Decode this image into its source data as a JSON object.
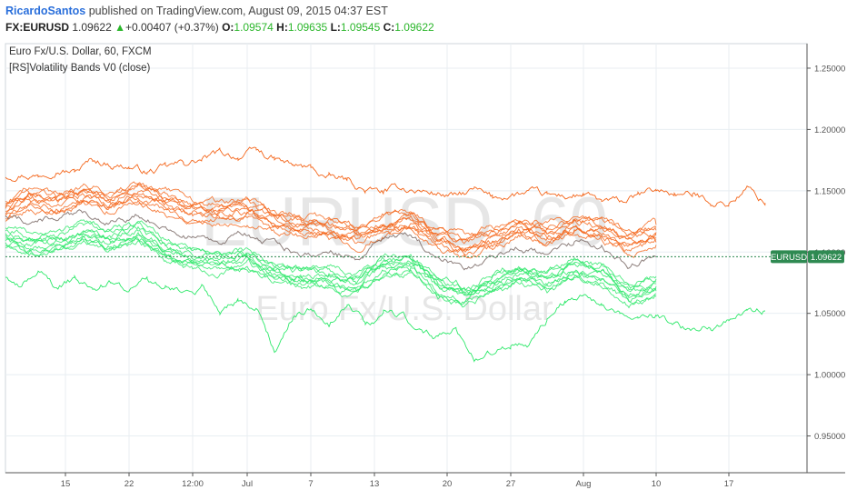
{
  "header": {
    "author": "RicardoSantos",
    "published_text": "published on TradingView.com, August 09, 2015 04:37 EST",
    "symbol": "FX:EURUSD",
    "price": "1.09622",
    "change": "+0.00407 (+0.37%)",
    "open_label": "O:",
    "open_value": "1.09574",
    "high_label": "H:",
    "high_value": "1.09635",
    "low_label": "L:",
    "low_value": "1.09545",
    "close_label": "C:",
    "close_value": "1.09622"
  },
  "legend": {
    "title": "Euro Fx/U.S. Dollar, 60, FXCM",
    "indicator": "[RS]Volatility Bands V0 (close)"
  },
  "watermark": {
    "symbol": "EURUSD, 60",
    "description": "Euro Fx/U.S. Dollar"
  },
  "price_tag": {
    "symbol": "EURUSD",
    "value": "1.09622"
  },
  "colors": {
    "upper_band": "#f4661b",
    "lower_band": "#2ee86a",
    "price_line": "#7a6a66",
    "price_tag_bg": "#2f8a52",
    "grid": "#e8eef2"
  },
  "chart_data": {
    "type": "line",
    "title": "Euro Fx/U.S. Dollar, 60, FXCM",
    "indicator": "[RS]Volatility Bands V0 (close)",
    "ylim": [
      0.92,
      1.27
    ],
    "y_ticks": [
      "1.25000",
      "1.20000",
      "1.15000",
      "1.10000",
      "1.05000",
      "1.00000",
      "0.95000"
    ],
    "y_tick_values": [
      1.25,
      1.2,
      1.15,
      1.1,
      1.05,
      1.0,
      0.95
    ],
    "x_ticks": [
      "15",
      "22",
      "12:00",
      "Jul",
      "7",
      "13",
      "20",
      "27",
      "Aug",
      "10",
      "17"
    ],
    "x_tick_positions": [
      1,
      8,
      15,
      21,
      28,
      35,
      43,
      50,
      58,
      66,
      74
    ],
    "xlim": [
      -5.6,
      82.6
    ],
    "grid": true,
    "legend_position": "top-left",
    "last_price": 1.09622,
    "series": [
      {
        "role": "upper-outer",
        "x": [
          -5.6,
          -4,
          -2,
          0,
          2,
          4,
          6,
          8,
          10,
          12,
          14,
          16,
          18,
          20,
          22,
          24,
          26,
          28,
          30,
          32,
          34,
          36,
          38,
          40,
          42,
          44,
          46,
          48,
          50,
          52,
          54,
          56,
          58,
          60,
          62,
          64,
          66,
          68,
          70,
          72,
          74,
          76,
          78
        ],
        "y": [
          1.162,
          1.165,
          1.163,
          1.17,
          1.166,
          1.175,
          1.172,
          1.17,
          1.165,
          1.168,
          1.172,
          1.175,
          1.18,
          1.178,
          1.182,
          1.175,
          1.17,
          1.168,
          1.16,
          1.158,
          1.15,
          1.148,
          1.152,
          1.15,
          1.148,
          1.145,
          1.15,
          1.143,
          1.147,
          1.148,
          1.145,
          1.145,
          1.147,
          1.14,
          1.14,
          1.145,
          1.15,
          1.148,
          1.146,
          1.142,
          1.14,
          1.152,
          1.14
        ]
      },
      {
        "role": "upper-band-1",
        "x": [
          -5.6,
          -3,
          0,
          3,
          6,
          9,
          12,
          15,
          18,
          21,
          24,
          27,
          30,
          33,
          36,
          39,
          42,
          45,
          48,
          51,
          54,
          57,
          60,
          63,
          66
        ],
        "y": [
          1.14,
          1.15,
          1.145,
          1.152,
          1.148,
          1.155,
          1.147,
          1.14,
          1.138,
          1.14,
          1.132,
          1.128,
          1.125,
          1.12,
          1.128,
          1.132,
          1.118,
          1.11,
          1.118,
          1.125,
          1.12,
          1.128,
          1.125,
          1.113,
          1.12
        ]
      },
      {
        "role": "upper-band-2",
        "x": [
          -5.6,
          -3,
          0,
          3,
          6,
          9,
          12,
          15,
          18,
          21,
          24,
          27,
          30,
          33,
          36,
          39,
          42,
          45,
          48,
          51,
          54,
          57,
          60,
          63,
          66
        ],
        "y": [
          1.134,
          1.144,
          1.139,
          1.146,
          1.142,
          1.149,
          1.141,
          1.134,
          1.132,
          1.134,
          1.126,
          1.122,
          1.119,
          1.114,
          1.122,
          1.126,
          1.112,
          1.104,
          1.112,
          1.119,
          1.114,
          1.122,
          1.119,
          1.107,
          1.114
        ]
      },
      {
        "role": "upper-band-3",
        "x": [
          -5.6,
          -3,
          0,
          3,
          6,
          9,
          12,
          15,
          18,
          21,
          24,
          27,
          30,
          33,
          36,
          39,
          42,
          45,
          48,
          51,
          54,
          57,
          60,
          63,
          66
        ],
        "y": [
          1.128,
          1.138,
          1.133,
          1.14,
          1.136,
          1.143,
          1.135,
          1.128,
          1.126,
          1.128,
          1.12,
          1.116,
          1.113,
          1.108,
          1.116,
          1.12,
          1.106,
          1.098,
          1.106,
          1.113,
          1.108,
          1.116,
          1.113,
          1.101,
          1.108
        ]
      },
      {
        "role": "price",
        "x": [
          -5.6,
          -3,
          0,
          3,
          6,
          9,
          12,
          15,
          18,
          21,
          24,
          27,
          30,
          33,
          36,
          39,
          42,
          45,
          48,
          51,
          54,
          57,
          60,
          63,
          66
        ],
        "y": [
          1.13,
          1.125,
          1.128,
          1.131,
          1.126,
          1.13,
          1.12,
          1.112,
          1.11,
          1.114,
          1.105,
          1.1,
          1.1,
          1.095,
          1.11,
          1.112,
          1.095,
          1.088,
          1.096,
          1.104,
          1.098,
          1.108,
          1.105,
          1.09,
          1.096
        ]
      },
      {
        "role": "lower-band-1",
        "x": [
          -5.6,
          -3,
          0,
          3,
          6,
          9,
          12,
          15,
          18,
          21,
          24,
          27,
          30,
          33,
          36,
          39,
          42,
          45,
          48,
          51,
          54,
          57,
          60,
          63,
          66
        ],
        "y": [
          1.118,
          1.112,
          1.114,
          1.12,
          1.116,
          1.121,
          1.108,
          1.1,
          1.098,
          1.1,
          1.09,
          1.086,
          1.085,
          1.08,
          1.094,
          1.096,
          1.078,
          1.07,
          1.08,
          1.088,
          1.082,
          1.092,
          1.088,
          1.072,
          1.078
        ]
      },
      {
        "role": "lower-band-2",
        "x": [
          -5.6,
          -3,
          0,
          3,
          6,
          9,
          12,
          15,
          18,
          21,
          24,
          27,
          30,
          33,
          36,
          39,
          42,
          45,
          48,
          51,
          54,
          57,
          60,
          63,
          66
        ],
        "y": [
          1.112,
          1.106,
          1.108,
          1.114,
          1.11,
          1.115,
          1.102,
          1.094,
          1.092,
          1.094,
          1.084,
          1.08,
          1.079,
          1.074,
          1.088,
          1.09,
          1.072,
          1.064,
          1.074,
          1.082,
          1.076,
          1.086,
          1.082,
          1.066,
          1.072
        ]
      },
      {
        "role": "lower-band-3",
        "x": [
          -5.6,
          -3,
          0,
          3,
          6,
          9,
          12,
          15,
          18,
          21,
          24,
          27,
          30,
          33,
          36,
          39,
          42,
          45,
          48,
          51,
          54,
          57,
          60,
          63,
          66
        ],
        "y": [
          1.106,
          1.1,
          1.102,
          1.108,
          1.104,
          1.109,
          1.096,
          1.088,
          1.086,
          1.088,
          1.078,
          1.074,
          1.073,
          1.068,
          1.082,
          1.084,
          1.066,
          1.058,
          1.068,
          1.076,
          1.07,
          1.08,
          1.076,
          1.06,
          1.066
        ]
      },
      {
        "role": "lower-outer",
        "x": [
          -5.6,
          -4,
          -2,
          0,
          2,
          4,
          6,
          8,
          10,
          12,
          14,
          16,
          18,
          20,
          22,
          24,
          26,
          28,
          30,
          32,
          34,
          36,
          38,
          40,
          42,
          44,
          46,
          48,
          50,
          52,
          54,
          56,
          58,
          60,
          62,
          64,
          66,
          68,
          70,
          72,
          74,
          76,
          78
        ],
        "y": [
          1.08,
          1.075,
          1.082,
          1.07,
          1.078,
          1.072,
          1.075,
          1.065,
          1.08,
          1.072,
          1.068,
          1.072,
          1.05,
          1.06,
          1.055,
          1.02,
          1.048,
          1.055,
          1.045,
          1.06,
          1.04,
          1.05,
          1.048,
          1.035,
          1.03,
          1.038,
          1.015,
          1.02,
          1.025,
          1.022,
          1.045,
          1.06,
          1.065,
          1.06,
          1.052,
          1.05,
          1.048,
          1.04,
          1.035,
          1.04,
          1.045,
          1.05,
          1.052
        ]
      }
    ]
  }
}
